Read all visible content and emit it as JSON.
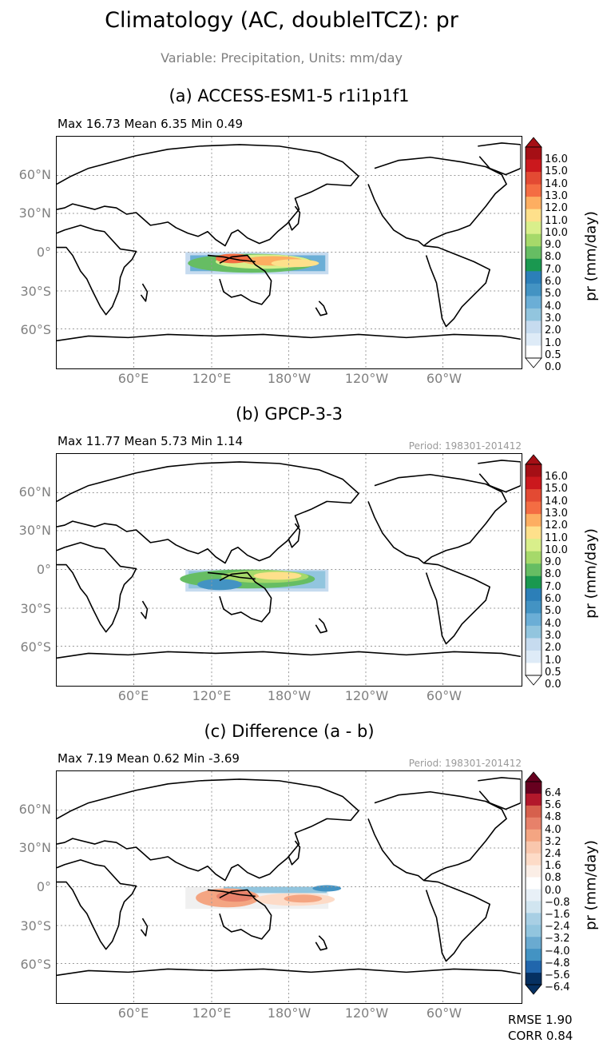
{
  "figure": {
    "title": "Climatology (AC, doubleITCZ): pr",
    "subtitle": "Variable: Precipitation, Units: mm/day"
  },
  "panels": [
    {
      "title": "(a) ACCESS-ESM1-5 r1i1p1f1",
      "stats": "Max 16.73 Mean 6.35 Min 0.49",
      "period": ""
    },
    {
      "title": "(b) GPCP-3-3",
      "stats": "Max 11.77 Mean 5.73 Min 1.14",
      "period": "Period: 198301-201412"
    },
    {
      "title": "(c) Difference (a - b)",
      "stats": "Max 7.19 Mean 0.62 Min -3.69",
      "period": "Period: 198301-201412"
    }
  ],
  "axes": {
    "lat_labels": [
      "60°N",
      "30°N",
      "0°",
      "30°S",
      "60°S"
    ],
    "lon_labels": [
      "60°E",
      "120°E",
      "180°W",
      "120°W",
      "60°W"
    ]
  },
  "colorbars": {
    "label": "pr (mm/day)",
    "precip_ticks": [
      "16.0",
      "15.0",
      "14.0",
      "13.0",
      "12.0",
      "11.0",
      "10.0",
      "9.0",
      "8.0",
      "7.0",
      "6.0",
      "5.0",
      "4.0",
      "3.0",
      "2.0",
      "1.0",
      "0.5",
      "0.0"
    ],
    "precip_colors": [
      "#a50f15",
      "#cb181d",
      "#e34a33",
      "#f46d43",
      "#fdae61",
      "#fee08b",
      "#d9ef8b",
      "#a6d96a",
      "#66bd63",
      "#1a9850",
      "#2c7fb8",
      "#4393c3",
      "#6baed6",
      "#92c5de",
      "#c6dbef",
      "#deebf7",
      "#ffffff"
    ],
    "diff_ticks": [
      "6.4",
      "5.6",
      "4.8",
      "4.0",
      "3.2",
      "2.4",
      "1.6",
      "0.8",
      "0.0",
      "−0.8",
      "−1.6",
      "−2.4",
      "−3.2",
      "−4.0",
      "−4.8",
      "−5.6",
      "−6.4"
    ],
    "diff_colors": [
      "#67001f",
      "#b2182b",
      "#d6604d",
      "#e7816a",
      "#f4a582",
      "#f9c7ad",
      "#fddbc7",
      "#fbeee6",
      "#ffffff",
      "#e8f0f7",
      "#d1e5f0",
      "#a8cfe4",
      "#92c5de",
      "#6aaad0",
      "#4393c3",
      "#2166ac",
      "#053061"
    ]
  },
  "footer": {
    "rmse": "RMSE 1.90",
    "corr": "CORR 0.84"
  }
}
